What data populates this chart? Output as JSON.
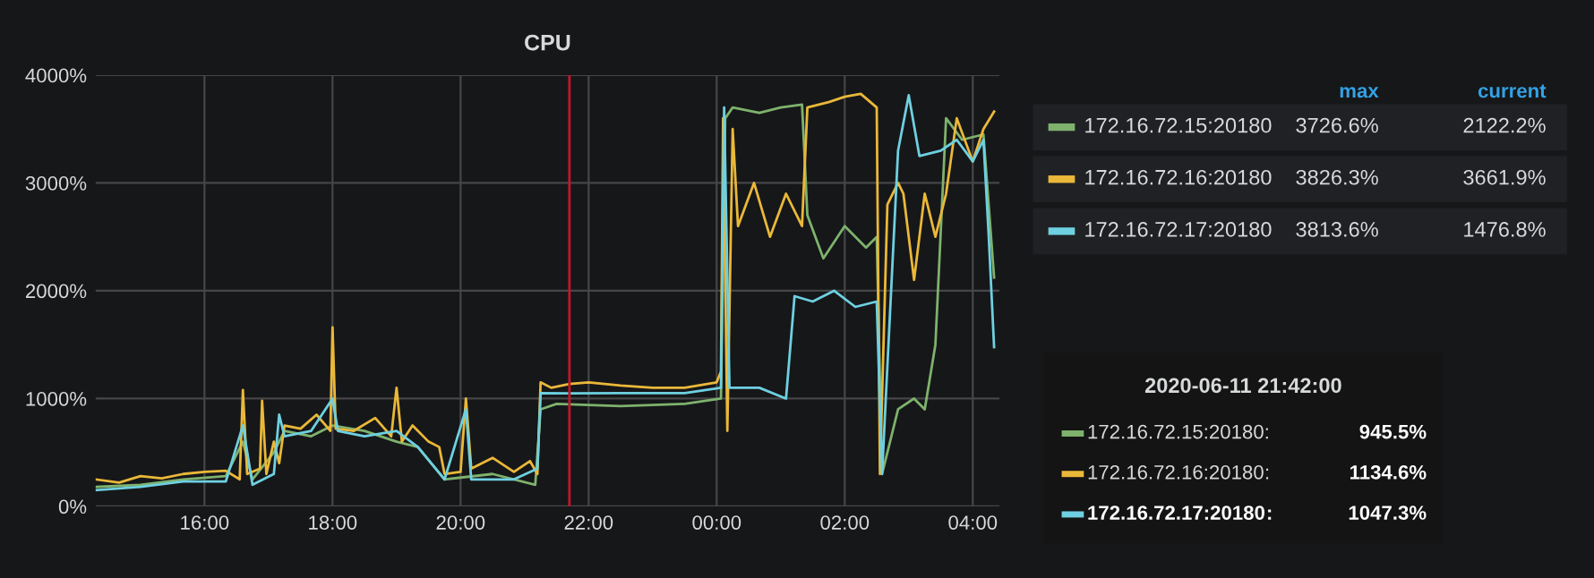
{
  "chart_data": {
    "type": "line",
    "title": "CPU",
    "xlim": [
      "2020-06-11T14:18",
      "2020-06-12T04:25"
    ],
    "xticks": [
      {
        "value": "2020-06-11T16:00",
        "label": "16:00"
      },
      {
        "value": "2020-06-11T18:00",
        "label": "18:00"
      },
      {
        "value": "2020-06-11T20:00",
        "label": "20:00"
      },
      {
        "value": "2020-06-11T22:00",
        "label": "22:00"
      },
      {
        "value": "2020-06-12T00:00",
        "label": "00:00"
      },
      {
        "value": "2020-06-12T02:00",
        "label": "02:00"
      },
      {
        "value": "2020-06-12T04:00",
        "label": "04:00"
      }
    ],
    "ylim": [
      0,
      4000
    ],
    "yticks": [
      {
        "value": 0,
        "label": "0%"
      },
      {
        "value": 1000,
        "label": "1000%"
      },
      {
        "value": 2000,
        "label": "2000%"
      },
      {
        "value": 3000,
        "label": "3000%"
      },
      {
        "value": 4000,
        "label": "4000%"
      }
    ],
    "grid": true,
    "legend": "right",
    "marker": "none",
    "line_style": "solid",
    "ref_lines": [
      {
        "axis": "x",
        "value": "2020-06-11T21:42",
        "color": "#c4162a"
      }
    ],
    "annotations": [
      "max",
      "current",
      "3726.6%",
      "2122.2%",
      "3826.3%",
      "3661.9%",
      "3813.6%",
      "1476.8%",
      "2020-06-11 21:42:00",
      "945.5%",
      "1134.6%",
      "1047.3%",
      ":"
    ],
    "series": [
      {
        "name": "172.16.72.15:20180",
        "color": "#7eb26d",
        "x": [
          "2020-06-11T14:18",
          "2020-06-11T15:00",
          "2020-06-11T15:40",
          "2020-06-11T16:20",
          "2020-06-11T16:36",
          "2020-06-11T16:45",
          "2020-06-11T17:05",
          "2020-06-11T17:15",
          "2020-06-11T17:40",
          "2020-06-11T18:00",
          "2020-06-11T18:30",
          "2020-06-11T19:00",
          "2020-06-11T19:20",
          "2020-06-11T19:45",
          "2020-06-11T20:30",
          "2020-06-11T21:10",
          "2020-06-11T21:15",
          "2020-06-11T21:30",
          "2020-06-11T21:42",
          "2020-06-11T22:30",
          "2020-06-11T23:30",
          "2020-06-12T00:04",
          "2020-06-12T00:08",
          "2020-06-12T00:15",
          "2020-06-12T00:40",
          "2020-06-12T01:00",
          "2020-06-12T01:20",
          "2020-06-12T01:25",
          "2020-06-12T01:40",
          "2020-06-12T02:00",
          "2020-06-12T02:20",
          "2020-06-12T02:30",
          "2020-06-12T02:35",
          "2020-06-12T02:50",
          "2020-06-12T03:05",
          "2020-06-12T03:15",
          "2020-06-12T03:25",
          "2020-06-12T03:35",
          "2020-06-12T03:50",
          "2020-06-12T04:10",
          "2020-06-12T04:20"
        ],
        "values": [
          180,
          200,
          250,
          280,
          600,
          250,
          500,
          700,
          650,
          750,
          700,
          600,
          550,
          250,
          300,
          200,
          900,
          950,
          945.5,
          930,
          950,
          1000,
          3600,
          3700,
          3650,
          3700,
          3726.6,
          2700,
          2300,
          2600,
          2400,
          2500,
          300,
          900,
          1000,
          900,
          1500,
          3600,
          3400,
          3450,
          2122.2
        ]
      },
      {
        "name": "172.16.72.16:20180",
        "color": "#eab839",
        "x": [
          "2020-06-11T14:18",
          "2020-06-11T14:40",
          "2020-06-11T15:00",
          "2020-06-11T15:20",
          "2020-06-11T15:40",
          "2020-06-11T16:00",
          "2020-06-11T16:20",
          "2020-06-11T16:33",
          "2020-06-11T16:36",
          "2020-06-11T16:40",
          "2020-06-11T16:52",
          "2020-06-11T16:54",
          "2020-06-11T16:58",
          "2020-06-11T17:05",
          "2020-06-11T17:10",
          "2020-06-11T17:15",
          "2020-06-11T17:30",
          "2020-06-11T17:45",
          "2020-06-11T17:58",
          "2020-06-11T18:00",
          "2020-06-11T18:03",
          "2020-06-11T18:20",
          "2020-06-11T18:40",
          "2020-06-11T18:55",
          "2020-06-11T19:00",
          "2020-06-11T19:05",
          "2020-06-11T19:15",
          "2020-06-11T19:30",
          "2020-06-11T19:40",
          "2020-06-11T19:45",
          "2020-06-11T20:00",
          "2020-06-11T20:05",
          "2020-06-11T20:10",
          "2020-06-11T20:30",
          "2020-06-11T20:50",
          "2020-06-11T21:05",
          "2020-06-11T21:12",
          "2020-06-11T21:15",
          "2020-06-11T21:25",
          "2020-06-11T21:42",
          "2020-06-11T22:00",
          "2020-06-11T22:30",
          "2020-06-11T23:00",
          "2020-06-11T23:30",
          "2020-06-12T00:00",
          "2020-06-12T00:04",
          "2020-06-12T00:06",
          "2020-06-12T00:10",
          "2020-06-12T00:15",
          "2020-06-12T00:20",
          "2020-06-12T00:35",
          "2020-06-12T00:50",
          "2020-06-12T01:05",
          "2020-06-12T01:20",
          "2020-06-12T01:25",
          "2020-06-12T01:45",
          "2020-06-12T02:00",
          "2020-06-12T02:15",
          "2020-06-12T02:30",
          "2020-06-12T02:33",
          "2020-06-12T02:40",
          "2020-06-12T02:50",
          "2020-06-12T02:55",
          "2020-06-12T03:05",
          "2020-06-12T03:15",
          "2020-06-12T03:25",
          "2020-06-12T03:35",
          "2020-06-12T03:45",
          "2020-06-12T04:00",
          "2020-06-12T04:10",
          "2020-06-12T04:20"
        ],
        "values": [
          250,
          220,
          280,
          260,
          300,
          320,
          330,
          250,
          1080,
          300,
          350,
          980,
          300,
          600,
          400,
          750,
          720,
          850,
          700,
          1660,
          720,
          700,
          820,
          650,
          1100,
          600,
          750,
          600,
          550,
          300,
          320,
          1000,
          350,
          450,
          320,
          420,
          300,
          1150,
          1100,
          1134.6,
          1150,
          1120,
          1100,
          1100,
          1150,
          1250,
          3600,
          700,
          3500,
          2600,
          3000,
          2500,
          2900,
          2600,
          3700,
          3750,
          3800,
          3826.3,
          3700,
          300,
          2800,
          3000,
          2900,
          2100,
          2900,
          2500,
          2900,
          3600,
          3200,
          3500,
          3661.9
        ]
      },
      {
        "name": "172.16.72.17:20180",
        "color": "#6ed0e0",
        "x": [
          "2020-06-11T14:18",
          "2020-06-11T15:00",
          "2020-06-11T15:40",
          "2020-06-11T16:20",
          "2020-06-11T16:36",
          "2020-06-11T16:45",
          "2020-06-11T17:05",
          "2020-06-11T17:10",
          "2020-06-11T17:15",
          "2020-06-11T17:40",
          "2020-06-11T18:00",
          "2020-06-11T18:05",
          "2020-06-11T18:30",
          "2020-06-11T19:00",
          "2020-06-11T19:20",
          "2020-06-11T19:45",
          "2020-06-11T20:05",
          "2020-06-11T20:10",
          "2020-06-11T20:50",
          "2020-06-11T21:12",
          "2020-06-11T21:15",
          "2020-06-11T21:42",
          "2020-06-11T22:30",
          "2020-06-11T23:30",
          "2020-06-12T00:04",
          "2020-06-12T00:07",
          "2020-06-12T00:12",
          "2020-06-12T00:40",
          "2020-06-12T01:05",
          "2020-06-12T01:13",
          "2020-06-12T01:30",
          "2020-06-12T01:50",
          "2020-06-12T02:10",
          "2020-06-12T02:30",
          "2020-06-12T02:35",
          "2020-06-12T02:50",
          "2020-06-12T03:00",
          "2020-06-12T03:10",
          "2020-06-12T03:30",
          "2020-06-12T03:45",
          "2020-06-12T04:00",
          "2020-06-12T04:10",
          "2020-06-12T04:15",
          "2020-06-12T04:20"
        ],
        "values": [
          150,
          180,
          230,
          230,
          750,
          200,
          300,
          850,
          650,
          700,
          1000,
          700,
          650,
          700,
          550,
          250,
          900,
          250,
          250,
          350,
          1050,
          1047.3,
          1050,
          1050,
          1100,
          3700,
          1100,
          1100,
          1000,
          1950,
          1900,
          2000,
          1850,
          1900,
          300,
          3300,
          3813.6,
          3250,
          3300,
          3400,
          3200,
          3400,
          2500,
          1476.8
        ]
      }
    ]
  }
}
